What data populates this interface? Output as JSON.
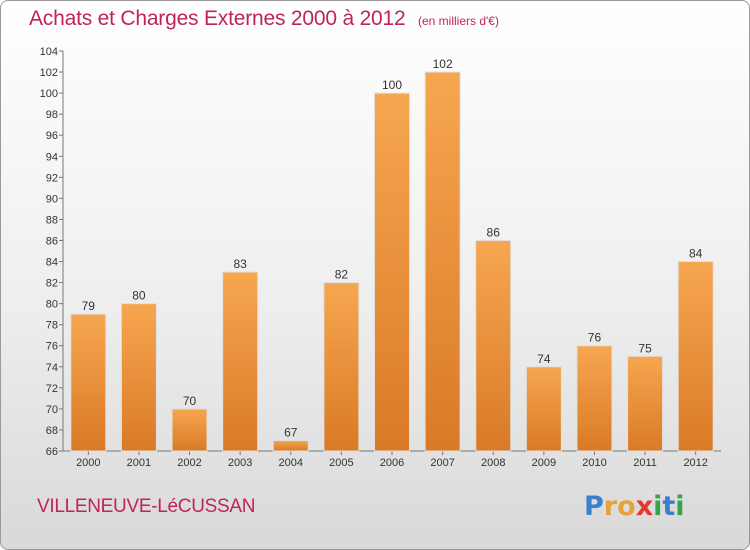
{
  "header": {
    "title": "Achats et Charges Externes 2000 à 2012",
    "subtitle": "(en milliers d'€)"
  },
  "footer": {
    "commune": "VILLENEUVE-LéCUSSAN",
    "logo_text": "Proxiti",
    "logo_letters": [
      "P",
      "r",
      "o",
      "x",
      "i",
      "t",
      "i"
    ],
    "logo_colors": [
      "#3a7fd0",
      "#e8a23a",
      "#e8a23a",
      "#e23a2a",
      "#3aa34a",
      "#3a7fd0",
      "#3aa34a"
    ]
  },
  "colors": {
    "bar_light": "#f7a650",
    "bar_dark": "#d97a26",
    "accent": "#c0245a"
  },
  "chart_data": {
    "type": "bar",
    "title": "Achats et Charges Externes 2000 à 2012",
    "subtitle": "(en milliers d'€)",
    "categories": [
      "2000",
      "2001",
      "2002",
      "2003",
      "2004",
      "2005",
      "2006",
      "2007",
      "2008",
      "2009",
      "2010",
      "2011",
      "2012"
    ],
    "values": [
      79,
      80,
      70,
      83,
      67,
      82,
      100,
      102,
      86,
      74,
      76,
      75,
      84
    ],
    "ylim": [
      66,
      104
    ],
    "yticks": [
      "66",
      "68",
      "70",
      "72",
      "74",
      "76",
      "78",
      "80",
      "82",
      "84",
      "86",
      "88",
      "90",
      "92",
      "94",
      "96",
      "98",
      "100",
      "102",
      "104"
    ],
    "grid": false,
    "data_labels": true
  }
}
